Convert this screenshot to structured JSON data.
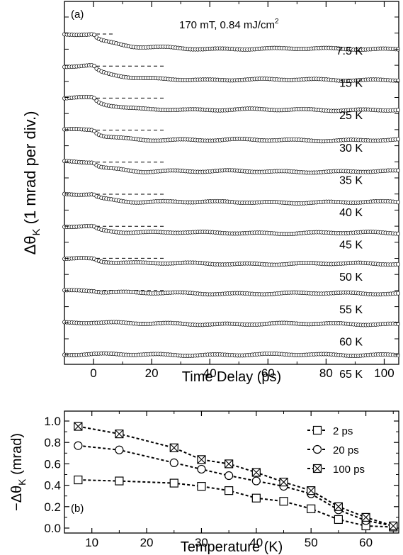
{
  "chart_data": [
    {
      "type": "line",
      "panel_label": "(a)",
      "annotation": "170 mT, 0.84 mJ/cm",
      "annotation_superscript": "2",
      "xlabel": "Time Delay (ps)",
      "ylabel_delta": "Δθ",
      "ylabel_subscript": "K",
      "ylabel_rest": " (1 mrad per div.)",
      "xlim": [
        -10,
        105
      ],
      "x_ticks": [
        0,
        20,
        40,
        60,
        80,
        100
      ],
      "x_tick_labels": [
        "0",
        "20",
        "40",
        "60",
        "80",
        "100"
      ],
      "y_units_per_division": "1 mrad",
      "reference_line_end_ps": [
        7,
        25,
        25,
        25,
        25,
        25,
        25,
        25,
        25,
        25,
        25
      ],
      "series": [
        {
          "name": "7.5 K",
          "label": "7.5 K",
          "drop": 0.95,
          "fast": 0.45
        },
        {
          "name": "15 K",
          "label": "15 K",
          "drop": 0.88,
          "fast": 0.44
        },
        {
          "name": "25 K",
          "label": "25 K",
          "drop": 0.75,
          "fast": 0.42
        },
        {
          "name": "30 K",
          "label": "30 K",
          "drop": 0.64,
          "fast": 0.39
        },
        {
          "name": "35 K",
          "label": "35 K",
          "drop": 0.6,
          "fast": 0.35
        },
        {
          "name": "40 K",
          "label": "40 K",
          "drop": 0.52,
          "fast": 0.28
        },
        {
          "name": "45 K",
          "label": "45 K",
          "drop": 0.43,
          "fast": 0.25
        },
        {
          "name": "50 K",
          "label": "50 K",
          "drop": 0.35,
          "fast": 0.18
        },
        {
          "name": "55 K",
          "label": "55 K",
          "drop": 0.2,
          "fast": 0.08
        },
        {
          "name": "60 K",
          "label": "60 K",
          "drop": 0.1,
          "fast": 0.02
        },
        {
          "name": "65 K",
          "label": "65 K",
          "drop": 0.02,
          "fast": 0.01
        }
      ]
    },
    {
      "type": "line",
      "panel_label": "(b)",
      "xlabel": "Temperature (K)",
      "ylabel_prefix": "−Δθ",
      "ylabel_subscript": "K",
      "ylabel_rest": " (mrad)",
      "xlim": [
        5,
        66
      ],
      "ylim": [
        0,
        1.0
      ],
      "x_ticks": [
        10,
        20,
        30,
        40,
        50,
        60
      ],
      "x_tick_labels": [
        "10",
        "20",
        "30",
        "40",
        "50",
        "60"
      ],
      "y_ticks": [
        0,
        0.2,
        0.4,
        0.6,
        0.8,
        1.0
      ],
      "y_tick_labels": [
        "0.0",
        "0.2",
        "0.4",
        "0.6",
        "0.8",
        "1.0"
      ],
      "legend_position": "right",
      "x": [
        7.5,
        15,
        25,
        30,
        35,
        40,
        45,
        50,
        55,
        60,
        65
      ],
      "series": [
        {
          "name": "2 ps",
          "marker": "square",
          "values": [
            0.45,
            0.44,
            0.42,
            0.39,
            0.35,
            0.28,
            0.25,
            0.18,
            0.08,
            0.02,
            0.01
          ]
        },
        {
          "name": "20 ps",
          "marker": "circle",
          "values": [
            0.77,
            0.73,
            0.61,
            0.55,
            0.49,
            0.44,
            0.39,
            0.32,
            0.17,
            0.07,
            0.02
          ]
        },
        {
          "name": "100 ps",
          "marker": "crossed-square",
          "values": [
            0.95,
            0.88,
            0.75,
            0.64,
            0.6,
            0.52,
            0.43,
            0.35,
            0.2,
            0.1,
            0.02
          ]
        }
      ]
    }
  ]
}
